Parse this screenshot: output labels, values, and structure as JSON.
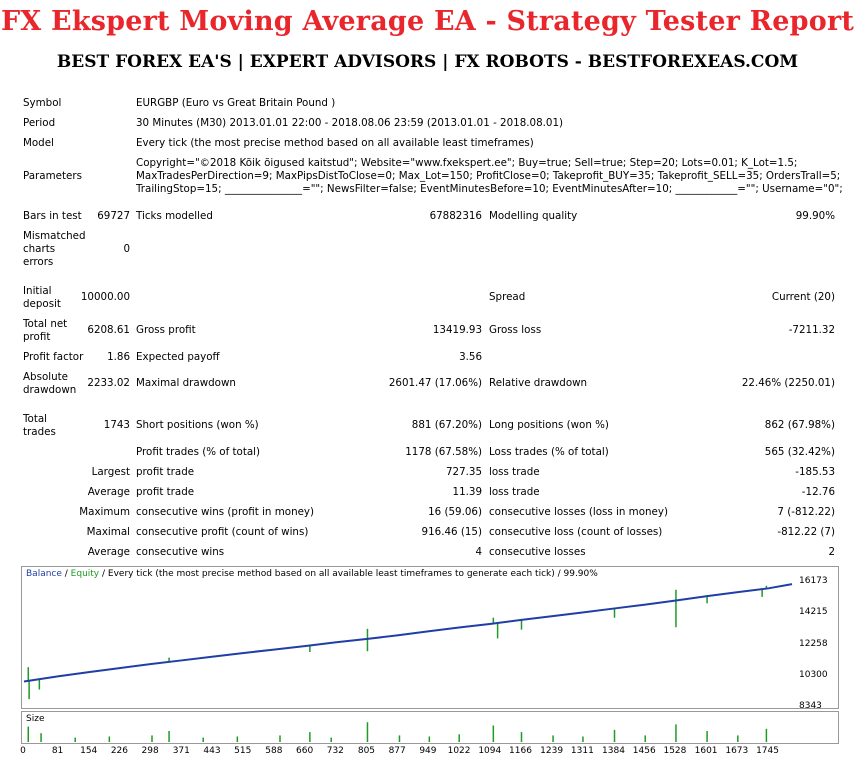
{
  "header": {
    "title": "FX Ekspert Moving Average EA - Strategy Tester Report",
    "subtitle": "BEST FOREX EA'S | EXPERT ADVISORS | FX ROBOTS - BESTFOREXEAS.COM"
  },
  "report": {
    "symbol_label": "Symbol",
    "symbol_value": "EURGBP (Euro vs Great Britain Pound )",
    "period_label": "Period",
    "period_value": "30 Minutes (M30) 2013.01.01 22:00 - 2018.08.06 23:59 (2013.01.01 - 2018.08.01)",
    "model_label": "Model",
    "model_value": "Every tick (the most precise method based on all available least timeframes)",
    "params_label": "Parameters",
    "params_line1": "Copyright=\"©2018 Kõik õigused kaitstud\"; Website=\"www.fxekspert.ee\"; Buy=true; Sell=true; Step=20; Lots=0.01; K_Lot=1.5;",
    "params_line2": "MaxTradesPerDirection=9; MaxPipsDistToClose=0; Max_Lot=150; ProfitClose=0; Takeprofit_BUY=35; Takeprofit_SELL=35; OrdersTrall=5;",
    "params_line3": "TrailingStop=15; _______________=\"\"; NewsFilter=false; EventMinutesBefore=10; EventMinutesAfter=10; ____________=\"\"; Username=\"0\";",
    "bars_label": "Bars in test",
    "bars_value": "69727",
    "ticks_label": "Ticks modelled",
    "ticks_value": "67882316",
    "quality_label": "Modelling quality",
    "quality_value": "99.90%",
    "mismatch_l1": "Mismatched",
    "mismatch_l2": "charts",
    "mismatch_l3": "errors",
    "mismatch_value": "0",
    "deposit_l1": "Initial",
    "deposit_l2": "deposit",
    "deposit_value": "10000.00",
    "spread_label": "Spread",
    "spread_value": "Current (20)",
    "netprofit_l1": "Total net",
    "netprofit_l2": "profit",
    "netprofit_value": "6208.61",
    "grossprofit_label": "Gross profit",
    "grossprofit_value": "13419.93",
    "grossloss_label": "Gross loss",
    "grossloss_value": "-7211.32",
    "pf_label": "Profit factor",
    "pf_value": "1.86",
    "payoff_label": "Expected payoff",
    "payoff_value": "3.56",
    "absdd_l1": "Absolute",
    "absdd_l2": "drawdown",
    "absdd_value": "2233.02",
    "maxdd_label": "Maximal drawdown",
    "maxdd_value": "2601.47 (17.06%)",
    "reldd_label": "Relative drawdown",
    "reldd_value": "22.46% (2250.01)",
    "trades_l1": "Total",
    "trades_l2": "trades",
    "trades_value": "1743",
    "short_label": "Short positions (won %)",
    "short_value": "881 (67.20%)",
    "long_label": "Long positions (won %)",
    "long_value": "862 (67.98%)",
    "ptrades_label": "Profit trades (% of total)",
    "ptrades_value": "1178 (67.58%)",
    "ltrades_label": "Loss trades (% of total)",
    "ltrades_value": "565 (32.42%)",
    "largest_label": "Largest",
    "largest_p_label": "profit trade",
    "largest_p_value": "727.35",
    "largest_l_label": "loss trade",
    "largest_l_value": "-185.53",
    "average_label": "Average",
    "average_p_label": "profit trade",
    "average_p_value": "11.39",
    "average_l_label": "loss trade",
    "average_l_value": "-12.76",
    "maximum_label": "Maximum",
    "maximum_p_label": "consecutive wins (profit in money)",
    "maximum_p_value": "16 (59.06)",
    "maximum_l_label": "consecutive losses (loss in money)",
    "maximum_l_value": "7 (-812.22)",
    "maximal_label": "Maximal",
    "maximal_p_label": "consecutive profit (count of wins)",
    "maximal_p_value": "916.46 (15)",
    "maximal_l_label": "consecutive loss (count of losses)",
    "maximal_l_value": "-812.22 (7)",
    "avgc_label": "Average",
    "avgc_p_label": "consecutive wins",
    "avgc_p_value": "4",
    "avgc_l_label": "consecutive losses",
    "avgc_l_value": "2"
  },
  "chart_data": {
    "type": "line",
    "legend_balance": "Balance",
    "legend_sep": " / ",
    "legend_equity": "Equity",
    "legend_rest": " / Every tick (the most precise method based on all available least timeframes to generate each tick) / 99.90%",
    "size_label": "Size",
    "balance_color": "#1f3ea6",
    "equity_color": "#1f9a26",
    "yticks": [
      "16173",
      "14215",
      "12258",
      "10300",
      "8343"
    ],
    "ytick_values": [
      16173,
      14215,
      12258,
      10300,
      8343
    ],
    "ylim": [
      8343,
      16173
    ],
    "xticks": [
      "0",
      "81",
      "154",
      "226",
      "298",
      "371",
      "443",
      "515",
      "588",
      "660",
      "732",
      "805",
      "877",
      "949",
      "1022",
      "1094",
      "1166",
      "1239",
      "1311",
      "1384",
      "1456",
      "1528",
      "1601",
      "1673",
      "1745"
    ],
    "xlim": [
      0,
      1800
    ],
    "balance_x": [
      0,
      81,
      154,
      226,
      298,
      371,
      443,
      515,
      588,
      660,
      732,
      805,
      877,
      949,
      1022,
      1094,
      1166,
      1239,
      1311,
      1384,
      1456,
      1528,
      1601,
      1673,
      1745,
      1800
    ],
    "balance_y": [
      10000,
      10330,
      10600,
      10850,
      11100,
      11330,
      11560,
      11790,
      12010,
      12230,
      12460,
      12670,
      12900,
      13150,
      13390,
      13610,
      13860,
      14100,
      14330,
      14580,
      14820,
      15080,
      15350,
      15600,
      15840,
      16100
    ],
    "equity_dips": [
      {
        "x": 12,
        "y": 8900
      },
      {
        "x": 36,
        "y": 9500
      },
      {
        "x": 340,
        "y": 11500
      },
      {
        "x": 670,
        "y": 11850
      },
      {
        "x": 805,
        "y": 11900
      },
      {
        "x": 1110,
        "y": 12700
      },
      {
        "x": 1166,
        "y": 13250
      },
      {
        "x": 1384,
        "y": 14000
      },
      {
        "x": 1528,
        "y": 13400
      },
      {
        "x": 1601,
        "y": 14900
      },
      {
        "x": 1730,
        "y": 15300
      }
    ],
    "equity_spikes": [
      {
        "x": 10,
        "y": 10900
      },
      {
        "x": 805,
        "y": 13300
      },
      {
        "x": 1100,
        "y": 14000
      },
      {
        "x": 1528,
        "y": 15750
      },
      {
        "x": 1740,
        "y": 16000
      }
    ],
    "size_bars": [
      {
        "x": 10,
        "v": 0.7
      },
      {
        "x": 40,
        "v": 0.4
      },
      {
        "x": 120,
        "v": 0.2
      },
      {
        "x": 200,
        "v": 0.25
      },
      {
        "x": 300,
        "v": 0.3
      },
      {
        "x": 340,
        "v": 0.5
      },
      {
        "x": 420,
        "v": 0.2
      },
      {
        "x": 500,
        "v": 0.25
      },
      {
        "x": 600,
        "v": 0.3
      },
      {
        "x": 670,
        "v": 0.45
      },
      {
        "x": 720,
        "v": 0.2
      },
      {
        "x": 805,
        "v": 0.9
      },
      {
        "x": 880,
        "v": 0.3
      },
      {
        "x": 950,
        "v": 0.25
      },
      {
        "x": 1020,
        "v": 0.35
      },
      {
        "x": 1100,
        "v": 0.75
      },
      {
        "x": 1166,
        "v": 0.45
      },
      {
        "x": 1240,
        "v": 0.3
      },
      {
        "x": 1310,
        "v": 0.25
      },
      {
        "x": 1384,
        "v": 0.55
      },
      {
        "x": 1456,
        "v": 0.3
      },
      {
        "x": 1528,
        "v": 0.8
      },
      {
        "x": 1601,
        "v": 0.5
      },
      {
        "x": 1673,
        "v": 0.3
      },
      {
        "x": 1740,
        "v": 0.6
      }
    ]
  }
}
